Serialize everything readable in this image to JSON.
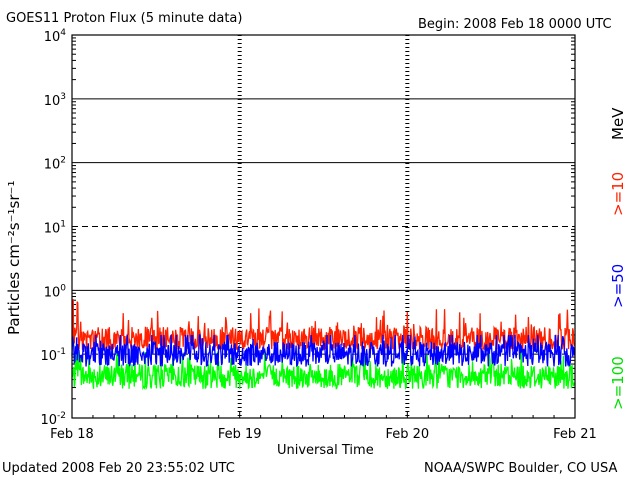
{
  "page": {
    "title": "GOES11 Proton Flux (5 minute data)",
    "begin": "Begin: 2008 Feb 18 0000 UTC",
    "updated": "Updated 2008 Feb 20 23:55:02 UTC",
    "credit": "NOAA/SWPC Boulder, CO USA",
    "unit": "MeV"
  },
  "chart_data": {
    "type": "line",
    "title": "GOES11 Proton Flux (5 minute data)",
    "xlabel": "Universal Time",
    "ylabel": "Particles cm⁻²s⁻¹sr⁻¹",
    "yscale": "log",
    "ylim": [
      0.01,
      10000
    ],
    "y_ticks": [
      {
        "base": "10",
        "exp": "-2",
        "value": 0.01
      },
      {
        "base": "10",
        "exp": "-1",
        "value": 0.1
      },
      {
        "base": "10",
        "exp": "0",
        "value": 1
      },
      {
        "base": "10",
        "exp": "1",
        "value": 10
      },
      {
        "base": "10",
        "exp": "2",
        "value": 100
      },
      {
        "base": "10",
        "exp": "3",
        "value": 1000
      },
      {
        "base": "10",
        "exp": "4",
        "value": 10000
      }
    ],
    "x_ticks": [
      "Feb 18",
      "Feb 19",
      "Feb 20",
      "Feb 21"
    ],
    "xlim": [
      "2008-02-18T00:00",
      "2008-02-21T00:00"
    ],
    "reference_lines": [
      {
        "value": 10,
        "style": "dashed"
      },
      {
        "value": 0.1,
        "style": "dashed"
      }
    ],
    "grid": true,
    "series": [
      {
        "name": ">=10",
        "color": "#ff2000",
        "typical": 0.17,
        "range": [
          0.12,
          0.75
        ]
      },
      {
        "name": ">=50",
        "color": "#0000ff",
        "typical": 0.1,
        "range": [
          0.055,
          0.2
        ]
      },
      {
        "name": ">=100",
        "color": "#00ff00",
        "typical": 0.045,
        "range": [
          0.025,
          0.11
        ]
      }
    ]
  }
}
